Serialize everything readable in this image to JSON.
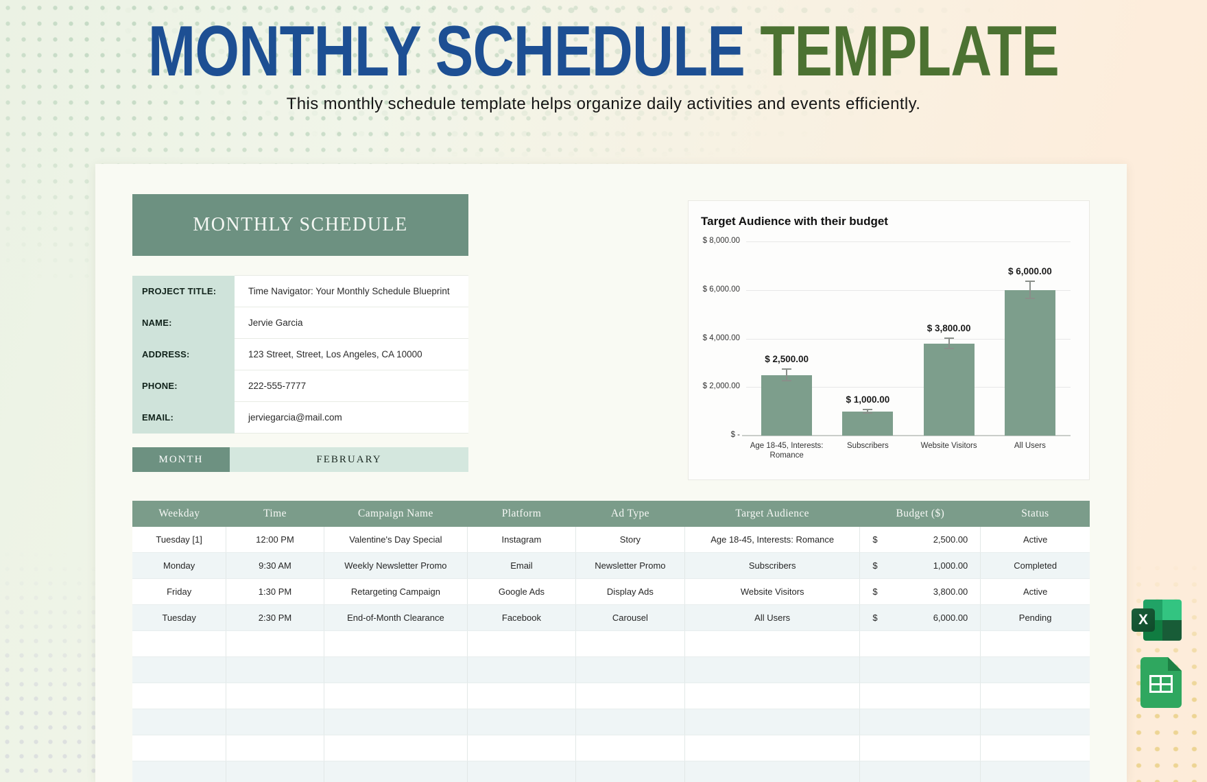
{
  "header": {
    "title_primary": "MONTHLY SCHEDULE",
    "title_accent": "TEMPLATE",
    "subtitle": "This monthly schedule template helps organize daily activities and events efficiently.",
    "title_primary_color": "#1d4f93",
    "title_accent_color": "#4c7232"
  },
  "doc": {
    "banner_title": "MONTHLY SCHEDULE",
    "info": [
      {
        "label": "PROJECT TITLE:",
        "value": "Time Navigator: Your Monthly Schedule Blueprint"
      },
      {
        "label": "NAME:",
        "value": "Jervie Garcia"
      },
      {
        "label": "ADDRESS:",
        "value": "123 Street, Street, Los Angeles, CA 10000"
      },
      {
        "label": "PHONE:",
        "value": "222-555-7777"
      },
      {
        "label": "EMAIL:",
        "value": "jerviegarcia@mail.com"
      }
    ],
    "month_label": "MONTH",
    "month_value": "FEBRUARY"
  },
  "chart_data": {
    "type": "bar",
    "title": "Target Audience with their budget",
    "categories": [
      "Age 18-45, Interests: Romance",
      "Subscribers",
      "Website Visitors",
      "All Users"
    ],
    "values": [
      2500,
      1000,
      3800,
      6000
    ],
    "error_bars": [
      250,
      80,
      220,
      350
    ],
    "data_labels": [
      "$ 2,500.00",
      "$ 1,000.00",
      "$ 3,800.00",
      "$ 6,000.00"
    ],
    "ytick_labels": [
      "$ 8,000.00",
      "$ 6,000.00",
      "$ 4,000.00",
      "$ 2,000.00",
      "$ -"
    ],
    "ytick_values": [
      8000,
      6000,
      4000,
      2000,
      0
    ],
    "ylim": [
      0,
      8000
    ],
    "xlabel": "",
    "ylabel": "",
    "grid": true,
    "legend_position": "none",
    "bar_color": "#7d9e8c"
  },
  "schedule": {
    "columns": [
      "Weekday",
      "Time",
      "Campaign Name",
      "Platform",
      "Ad Type",
      "Target Audience",
      "Budget ($)",
      "Status"
    ],
    "rows": [
      {
        "weekday": "Tuesday [1]",
        "time": "12:00 PM",
        "campaign": "Valentine's Day Special",
        "platform": "Instagram",
        "ad_type": "Story",
        "audience": "Age 18-45, Interests: Romance",
        "currency": "$",
        "budget": "2,500.00",
        "status": "Active"
      },
      {
        "weekday": "Monday",
        "time": "9:30 AM",
        "campaign": "Weekly Newsletter Promo",
        "platform": "Email",
        "ad_type": "Newsletter Promo",
        "audience": "Subscribers",
        "currency": "$",
        "budget": "1,000.00",
        "status": "Completed"
      },
      {
        "weekday": "Friday",
        "time": "1:30 PM",
        "campaign": "Retargeting Campaign",
        "platform": "Google Ads",
        "ad_type": "Display Ads",
        "audience": "Website Visitors",
        "currency": "$",
        "budget": "3,800.00",
        "status": "Active"
      },
      {
        "weekday": "Tuesday",
        "time": "2:30 PM",
        "campaign": "End-of-Month Clearance",
        "platform": "Facebook",
        "ad_type": "Carousel",
        "audience": "All Users",
        "currency": "$",
        "budget": "6,000.00",
        "status": "Pending"
      }
    ],
    "empty_row_count": 7
  },
  "icons": {
    "excel_glyph": "X",
    "excel_name": "Microsoft Excel",
    "sheets_name": "Google Sheets"
  },
  "colors": {
    "sage_header": "#6d9181",
    "table_header_green": "#7b9c8a",
    "mint_label": "#cfe3da",
    "mint_month": "#d4e7de",
    "row_stripe": "#eff5f6",
    "bar_green": "#7d9e8c"
  }
}
